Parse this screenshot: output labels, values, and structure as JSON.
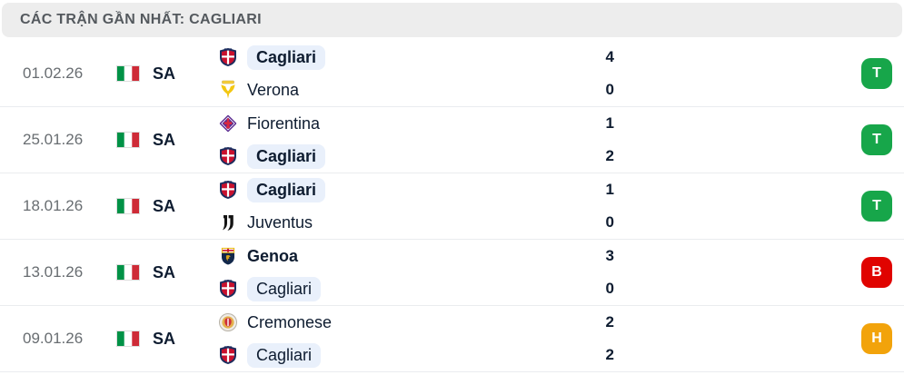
{
  "header": {
    "title": "CÁC TRẬN GẦN NHẤT: CAGLIARI"
  },
  "colors": {
    "win": "#17a64a",
    "loss": "#e00300",
    "draw": "#f2a30b",
    "highlight": "#e9f0fb",
    "text_dark": "#0e1c30",
    "date_gray": "#686d71",
    "header_bg": "#ededed",
    "header_text": "#54595e",
    "separator": "#eaecef"
  },
  "result_legend": {
    "win": "T",
    "loss": "B",
    "draw": "H"
  },
  "matches": [
    {
      "date": "01.02.26",
      "league": "SA",
      "flag": "italy-flag",
      "home": {
        "name": "Cagliari",
        "logo": "cagliari",
        "score": "4",
        "winner": true,
        "highlight": true
      },
      "away": {
        "name": "Verona",
        "logo": "verona",
        "score": "0",
        "winner": false,
        "highlight": false
      },
      "result": {
        "label": "T",
        "type": "win"
      }
    },
    {
      "date": "25.01.26",
      "league": "SA",
      "flag": "italy-flag",
      "home": {
        "name": "Fiorentina",
        "logo": "fiorentina",
        "score": "1",
        "winner": false,
        "highlight": false
      },
      "away": {
        "name": "Cagliari",
        "logo": "cagliari",
        "score": "2",
        "winner": true,
        "highlight": true
      },
      "result": {
        "label": "T",
        "type": "win"
      }
    },
    {
      "date": "18.01.26",
      "league": "SA",
      "flag": "italy-flag",
      "home": {
        "name": "Cagliari",
        "logo": "cagliari",
        "score": "1",
        "winner": true,
        "highlight": true
      },
      "away": {
        "name": "Juventus",
        "logo": "juventus",
        "score": "0",
        "winner": false,
        "highlight": false
      },
      "result": {
        "label": "T",
        "type": "win"
      }
    },
    {
      "date": "13.01.26",
      "league": "SA",
      "flag": "italy-flag",
      "home": {
        "name": "Genoa",
        "logo": "genoa",
        "score": "3",
        "winner": true,
        "highlight": false
      },
      "away": {
        "name": "Cagliari",
        "logo": "cagliari",
        "score": "0",
        "winner": false,
        "highlight": true
      },
      "result": {
        "label": "B",
        "type": "loss"
      }
    },
    {
      "date": "09.01.26",
      "league": "SA",
      "flag": "italy-flag",
      "home": {
        "name": "Cremonese",
        "logo": "cremonese",
        "score": "2",
        "winner": false,
        "highlight": false
      },
      "away": {
        "name": "Cagliari",
        "logo": "cagliari",
        "score": "2",
        "winner": false,
        "highlight": true
      },
      "result": {
        "label": "H",
        "type": "draw"
      }
    }
  ]
}
